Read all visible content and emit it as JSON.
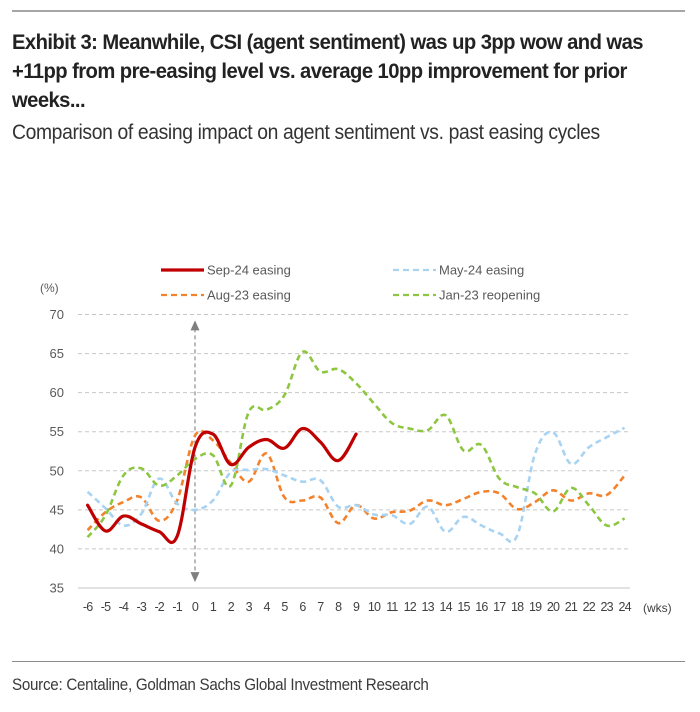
{
  "header": {
    "title": "Exhibit 3: Meanwhile, CSI (agent sentiment) was up 3pp wow and was +11pp from pre-easing level vs. average 10pp improvement for prior weeks...",
    "subtitle": "Comparison of easing impact on agent sentiment vs. past easing cycles"
  },
  "footer": {
    "source": "Source: Centaline, Goldman Sachs Global Investment Research"
  },
  "chart_data": {
    "type": "line",
    "title": "",
    "xlabel": "(wks)",
    "ylabel": "(%)",
    "x": [
      -6,
      -5,
      -4,
      -3,
      -2,
      -1,
      0,
      1,
      2,
      3,
      4,
      5,
      6,
      7,
      8,
      9,
      10,
      11,
      12,
      13,
      14,
      15,
      16,
      17,
      18,
      19,
      20,
      21,
      22,
      23,
      24
    ],
    "x_tick_labels": [
      "-6",
      "-5",
      "-4",
      "-3",
      "-2",
      "-1",
      "0",
      "1",
      "2",
      "3",
      "4",
      "5",
      "6",
      "7",
      "8",
      "9",
      "10",
      "11",
      "12",
      "13",
      "14",
      "15",
      "16",
      "17",
      "18",
      "19",
      "20",
      "21",
      "22",
      "23",
      "24"
    ],
    "ylim": [
      35,
      70
    ],
    "y_ticks": [
      35,
      40,
      45,
      50,
      55,
      60,
      65,
      70
    ],
    "y_tick_labels": [
      "35",
      "40",
      "45",
      "50",
      "55",
      "60",
      "65",
      "70"
    ],
    "grid": true,
    "legend_position": "top",
    "annotations": [
      {
        "type": "double-arrow",
        "x": 0,
        "y_range": [
          36,
          69
        ],
        "style": "dashed"
      }
    ],
    "series": [
      {
        "name": "Sep-24 easing",
        "color": "#C00000",
        "style": "solid",
        "values": [
          45.6,
          42.3,
          44.2,
          43.2,
          42.2,
          41.6,
          53.0,
          54.7,
          50.8,
          53.0,
          54.0,
          52.9,
          55.4,
          53.7,
          51.3,
          54.7
        ]
      },
      {
        "name": "May-24 easing",
        "color": "#A9D3F2",
        "style": "dashed",
        "values": [
          47.3,
          45.2,
          43.0,
          44.5,
          49.0,
          45.8,
          45.0,
          46.2,
          49.8,
          50.1,
          50.2,
          49.4,
          48.6,
          48.8,
          45.4,
          45.6,
          44.4,
          44.3,
          43.2,
          45.4,
          42.2,
          44.1,
          43.0,
          42.0,
          41.7,
          52.2,
          54.9,
          50.9,
          53.0,
          54.3,
          55.5
        ]
      },
      {
        "name": "Aug-23 easing",
        "color": "#F4822C",
        "style": "dashed",
        "values": [
          42.4,
          44.7,
          46.0,
          46.6,
          43.6,
          46.2,
          54.5,
          53.9,
          51.0,
          48.6,
          52.2,
          46.6,
          46.2,
          46.6,
          43.3,
          45.6,
          43.9,
          44.7,
          44.9,
          46.2,
          45.6,
          46.4,
          47.3,
          47.1,
          45.1,
          46.0,
          47.5,
          46.2,
          47.1,
          46.9,
          49.4
        ]
      },
      {
        "name": "Jan-23 reopening",
        "color": "#8DC641",
        "style": "dashed",
        "values": [
          41.5,
          44.3,
          49.4,
          50.3,
          48.1,
          49.4,
          51.5,
          52.0,
          48.1,
          57.5,
          57.8,
          59.7,
          65.2,
          62.7,
          63.0,
          61.2,
          58.6,
          56.1,
          55.4,
          55.2,
          57.1,
          52.6,
          53.3,
          49.0,
          47.9,
          47.1,
          44.8,
          47.8,
          45.6,
          43.0,
          43.9
        ]
      }
    ]
  }
}
